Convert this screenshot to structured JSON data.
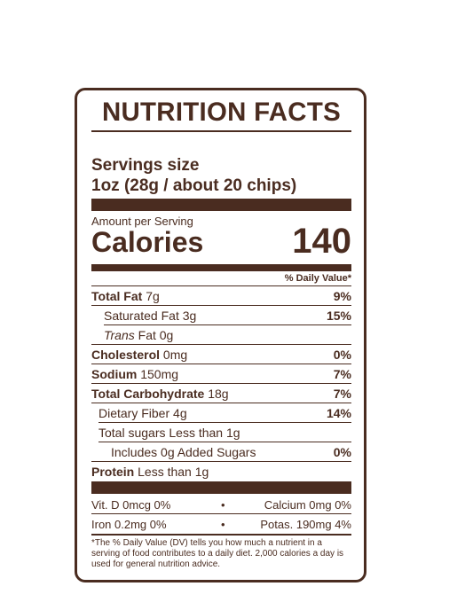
{
  "title": "NUTRITION FACTS",
  "servings_size_label": "Servings size",
  "serving_size": "1oz (28g / about 20 chips)",
  "amount_per_serving": "Amount per Serving",
  "calories_label": "Calories",
  "calories_value": "140",
  "dv_header": "% Daily Value*",
  "nutrients": [
    {
      "name": "Total Fat",
      "amount": "7g",
      "dv": "9%"
    },
    {
      "name": "Saturated Fat",
      "amount": "3g",
      "dv": "15%"
    },
    {
      "name": "Trans",
      "name_rest": "Fat",
      "amount": "0g",
      "dv": ""
    },
    {
      "name": "Cholesterol",
      "amount": "0mg",
      "dv": "0%"
    },
    {
      "name": "Sodium",
      "amount": "150mg",
      "dv": "7%"
    },
    {
      "name": "Total Carbohydrate",
      "amount": "18g",
      "dv": "7%"
    },
    {
      "name": "Dietary Fiber",
      "amount": "4g",
      "dv": "14%"
    },
    {
      "name": "Total sugars",
      "amount": "Less than 1g",
      "dv": ""
    },
    {
      "name": "Includes 0g Added Sugars",
      "amount": "",
      "dv": "0%"
    },
    {
      "name": "Protein",
      "amount": "Less than 1g",
      "dv": ""
    }
  ],
  "vitamins": [
    {
      "left": "Vit. D 0mcg  0%",
      "right": "Calcium 0mg  0%"
    },
    {
      "left": "Iron 0.2mg  0%",
      "right": "Potas. 190mg  4%"
    }
  ],
  "bullet": "•",
  "footnote": "*The % Daily Value (DV) tells you how much a nutrient in a serving of food contributes to a daily diet. 2,000 calories a day is used for general nutrition advice.",
  "colors": {
    "ink": "#4a2c20",
    "background": "#ffffff"
  }
}
